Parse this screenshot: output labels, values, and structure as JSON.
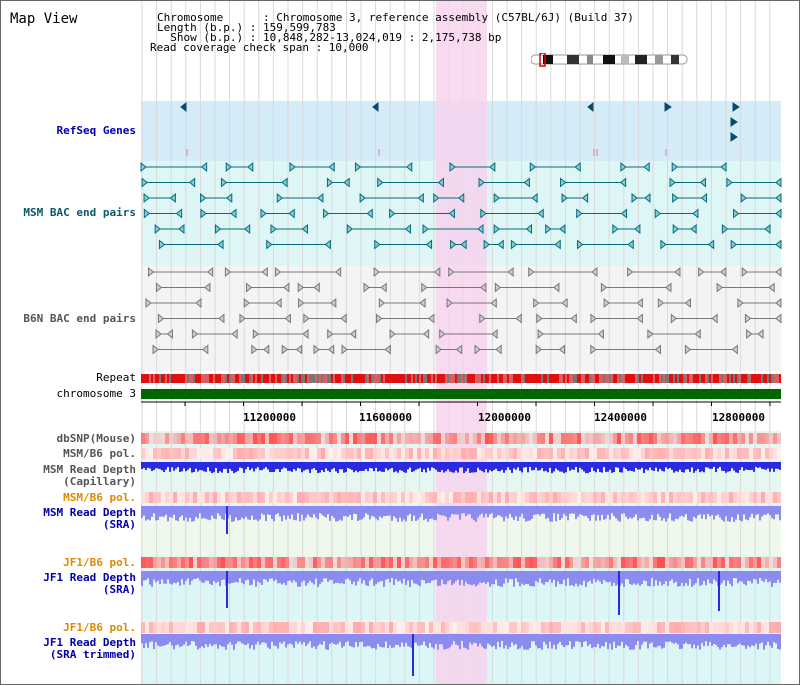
{
  "view": {
    "title": "Map View",
    "info_lines": [
      "Chromosome      : Chromosome 3, reference assembly (C57BL/6J) (Build 37)",
      "Length (b.p.) : 159,599,783",
      "  Show (b.p.) : 10,848,282-13,024,019 : 2,175,738 bp",
      "Read coverage check span : 10,000"
    ]
  },
  "tracks": {
    "refseq": "RefSeq Genes",
    "msm_bac": "MSM BAC end pairs",
    "b6n_bac": "B6N BAC end pairs",
    "repeat": "Repeat",
    "chromosome": "chromosome 3",
    "dbsnp": "dbSNP(Mouse)",
    "msm_b6_pol_1": "MSM/B6 pol.",
    "msm_read_cap_1": "MSM Read Depth",
    "msm_read_cap_2": "(Capillary)",
    "msm_b6_pol_2": "MSM/B6 pol.",
    "msm_read_sra_1": "MSM Read Depth",
    "msm_read_sra_2": "(SRA)",
    "jf1_b6_pol_1": "JF1/B6 pol.",
    "jf1_read_sra_1": "JF1 Read Depth",
    "jf1_read_sra_2": "(SRA)",
    "jf1_b6_pol_2": "JF1/B6 pol.",
    "jf1_read_trim_1": "JF1 Read Depth",
    "jf1_read_trim_2": "(SRA trimmed)"
  },
  "axis": {
    "ticks": [
      "11200000",
      "11600000",
      "12000000",
      "12400000",
      "12800000"
    ]
  },
  "colors": {
    "highlight": "#f7d3ef",
    "refseq_bg": "#d3ecf8",
    "msm_bg": "#dff6f6",
    "b6n_bg": "#f4f4f6",
    "chromosome": "#006600",
    "depth_dark": "#2a2ae0",
    "depth_light": "#8c8cf0"
  }
}
